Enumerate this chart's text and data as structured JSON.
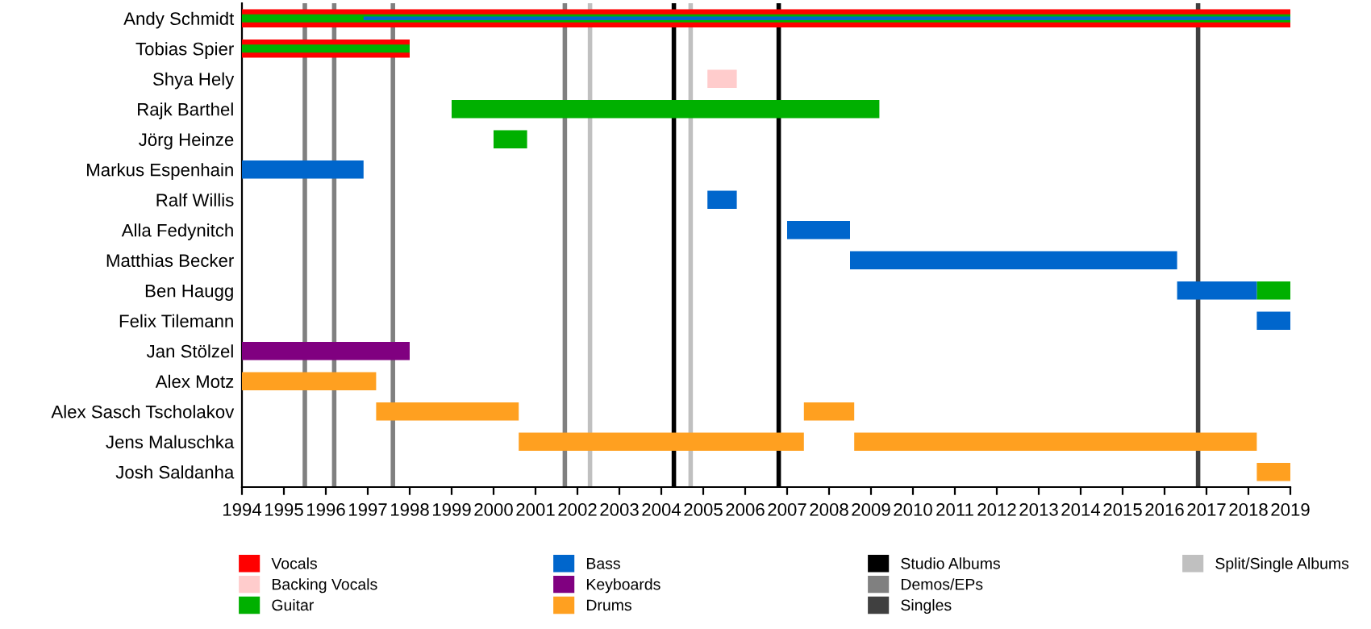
{
  "chart_data": {
    "type": "bar",
    "orientation": "horizontal",
    "categories": [
      "Andy Schmidt",
      "Tobias Spier",
      "Shya Hely",
      "Rajk Barthel",
      "Jörg Heinze",
      "Markus Espenhain",
      "Ralf Willis",
      "Alla Fedynitch",
      "Matthias Becker",
      "Ben Haugg",
      "Felix Tilemann",
      "Jan Stölzel",
      "Alex Motz",
      "Alex Sasch Tscholakov",
      "Jens Maluschka",
      "Josh Saldanha"
    ],
    "series": [
      {
        "name": "Vocals",
        "color": "#ff0000",
        "base": [
          1994,
          1994,
          null,
          null,
          null,
          null,
          null,
          null,
          null,
          null,
          null,
          null,
          null,
          null,
          null,
          null
        ],
        "values": [
          25,
          4.0,
          null,
          null,
          null,
          null,
          null,
          null,
          null,
          null,
          null,
          null,
          null,
          null,
          null,
          null
        ]
      },
      {
        "name": "Backing Vocals",
        "color": "#ffcccc",
        "base": [
          null,
          null,
          2005.1,
          null,
          null,
          null,
          null,
          null,
          null,
          null,
          null,
          null,
          null,
          null,
          null,
          null
        ],
        "values": [
          null,
          null,
          0.7,
          null,
          null,
          null,
          null,
          null,
          null,
          null,
          null,
          null,
          null,
          null,
          null,
          null
        ]
      },
      {
        "name": "Guitar",
        "color": "#00b000",
        "base": [
          1994,
          1994,
          null,
          1999,
          2000,
          null,
          null,
          null,
          null,
          2018.2,
          null,
          null,
          null,
          null,
          null,
          null
        ],
        "values": [
          25,
          4.0,
          null,
          10.2,
          0.8,
          null,
          null,
          null,
          null,
          0.8,
          null,
          null,
          null,
          null,
          null,
          null
        ]
      },
      {
        "name": "Bass",
        "color": "#0066cc",
        "base": [
          1996.9,
          null,
          null,
          null,
          null,
          1994,
          2005.1,
          2007,
          2008.5,
          2016.3,
          2018.2,
          null,
          null,
          null,
          null,
          null
        ],
        "values": [
          22.1,
          null,
          null,
          null,
          null,
          2.9,
          0.7,
          1.5,
          7.8,
          1.9,
          0.8,
          null,
          null,
          null,
          null,
          null
        ]
      },
      {
        "name": "Keyboards",
        "color": "#800080",
        "base": [
          null,
          null,
          null,
          null,
          null,
          null,
          null,
          null,
          null,
          null,
          null,
          1994,
          null,
          null,
          null,
          null
        ],
        "values": [
          null,
          null,
          null,
          null,
          null,
          null,
          null,
          null,
          null,
          null,
          null,
          4.0,
          null,
          null,
          null,
          null
        ]
      },
      {
        "name": "Drums",
        "color": "#ffa020",
        "base": [
          null,
          null,
          null,
          null,
          null,
          null,
          null,
          null,
          null,
          null,
          null,
          null,
          1994,
          1997.2,
          2000.6,
          2018.2
        ],
        "values": [
          null,
          null,
          null,
          null,
          null,
          null,
          null,
          null,
          null,
          null,
          null,
          null,
          3.2,
          3.4,
          6.8,
          0.8
        ]
      },
      {
        "color": "#ffa020",
        "base": [
          null,
          null,
          null,
          null,
          null,
          null,
          null,
          null,
          null,
          null,
          null,
          null,
          null,
          2007.4,
          2008.6,
          null
        ],
        "values": [
          null,
          null,
          null,
          null,
          null,
          null,
          null,
          null,
          null,
          null,
          null,
          null,
          null,
          1.2,
          9.6,
          null
        ]
      }
    ],
    "xlim": [
      1994,
      2019
    ],
    "xticks": [
      1994,
      1995,
      1996,
      1997,
      1998,
      1999,
      2000,
      2001,
      2002,
      2003,
      2004,
      2005,
      2006,
      2007,
      2008,
      2009,
      2010,
      2011,
      2012,
      2013,
      2014,
      2015,
      2016,
      2017,
      2018,
      2019
    ],
    "ref_lines": [
      {
        "axis": "x",
        "value": 2004.3,
        "label": "Studio Albums",
        "color": "#000000"
      },
      {
        "axis": "x",
        "value": 2006.8,
        "label": null,
        "color": "#000000"
      },
      {
        "axis": "x",
        "value": 1995.5,
        "label": "Demos/EPs",
        "color": "#808080"
      },
      {
        "axis": "x",
        "value": 1996.2,
        "label": null,
        "color": "#808080"
      },
      {
        "axis": "x",
        "value": 1997.6,
        "label": null,
        "color": "#808080"
      },
      {
        "axis": "x",
        "value": 2001.7,
        "label": null,
        "color": "#808080"
      },
      {
        "axis": "x",
        "value": 2016.8,
        "label": "Singles",
        "color": "#404040"
      },
      {
        "axis": "x",
        "value": 2002.3,
        "label": "Split/Single Albums",
        "color": "#c0c0c0"
      },
      {
        "axis": "x",
        "value": 2004.7,
        "label": null,
        "color": "#c0c0c0"
      }
    ],
    "legend": "bottom"
  }
}
